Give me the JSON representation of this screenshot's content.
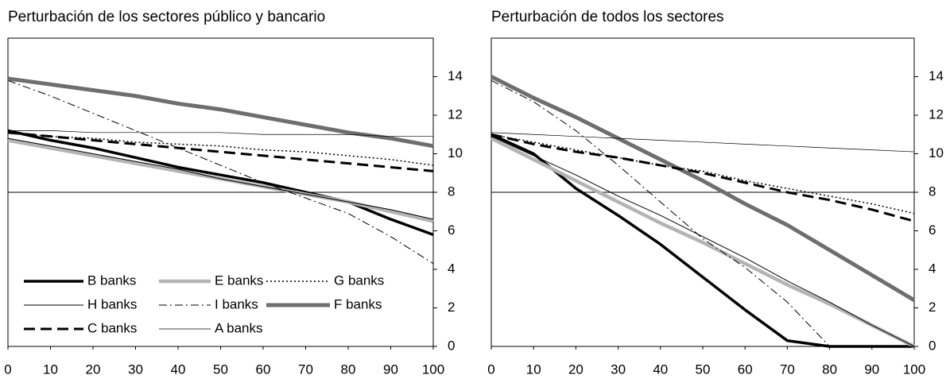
{
  "chart_data": [
    {
      "type": "line",
      "title": "Perturbación de los sectores público y bancario",
      "x": [
        0,
        10,
        20,
        30,
        40,
        50,
        60,
        70,
        80,
        90,
        100
      ],
      "xlim": [
        0,
        100
      ],
      "xticks": [
        0,
        10,
        20,
        30,
        40,
        50,
        60,
        70,
        80,
        90,
        100
      ],
      "ylim": [
        0,
        16
      ],
      "yticks": [
        0,
        2,
        4,
        6,
        8,
        10,
        12,
        14
      ],
      "hline": 8,
      "legend": true,
      "series": [
        {
          "name": "B banks",
          "color": "#000000",
          "width": 3.5,
          "dash": "none",
          "values": [
            11.2,
            10.7,
            10.3,
            9.8,
            9.3,
            8.9,
            8.5,
            8.0,
            7.5,
            6.6,
            5.8
          ]
        },
        {
          "name": "E banks",
          "color": "#b4b4b4",
          "width": 4.5,
          "dash": "none",
          "values": [
            10.7,
            10.3,
            9.9,
            9.5,
            9.1,
            8.7,
            8.3,
            7.9,
            7.5,
            7.0,
            6.5
          ]
        },
        {
          "name": "G banks",
          "color": "#000000",
          "width": 1.5,
          "dash": "2,3",
          "values": [
            11.1,
            10.9,
            10.8,
            10.6,
            10.5,
            10.4,
            10.2,
            10.1,
            9.9,
            9.7,
            9.4
          ]
        },
        {
          "name": "H banks",
          "color": "#000000",
          "width": 1,
          "dash": "none",
          "values": [
            10.8,
            10.4,
            10.0,
            9.6,
            9.2,
            8.7,
            8.3,
            7.9,
            7.5,
            7.1,
            6.6
          ]
        },
        {
          "name": "I banks",
          "color": "#000000",
          "width": 1,
          "dash": "10,4,2,4",
          "values": [
            13.8,
            13.0,
            12.1,
            11.2,
            10.3,
            9.4,
            8.5,
            7.7,
            6.9,
            5.7,
            4.3
          ]
        },
        {
          "name": "F banks",
          "color": "#6e6e6e",
          "width": 5,
          "dash": "none",
          "values": [
            13.9,
            13.6,
            13.3,
            13.0,
            12.6,
            12.3,
            11.9,
            11.5,
            11.1,
            10.8,
            10.4
          ]
        },
        {
          "name": "C banks",
          "color": "#000000",
          "width": 3,
          "dash": "14,7",
          "values": [
            11.1,
            10.9,
            10.7,
            10.5,
            10.3,
            10.1,
            9.9,
            9.7,
            9.5,
            9.3,
            9.1
          ]
        },
        {
          "name": "A banks",
          "color": "#000000",
          "width": 0.7,
          "dash": "none",
          "values": [
            11.2,
            11.2,
            11.1,
            11.1,
            11.1,
            11.1,
            11.0,
            11.0,
            11.0,
            10.9,
            10.9
          ]
        }
      ]
    },
    {
      "type": "line",
      "title": "Perturbación de todos los sectores",
      "x": [
        0,
        10,
        20,
        30,
        40,
        50,
        60,
        70,
        80,
        90,
        100
      ],
      "xlim": [
        0,
        100
      ],
      "xticks": [
        0,
        10,
        20,
        30,
        40,
        50,
        60,
        70,
        80,
        90,
        100
      ],
      "ylim": [
        0,
        16
      ],
      "yticks": [
        0,
        2,
        4,
        6,
        8,
        10,
        12,
        14
      ],
      "hline": 8,
      "legend": false,
      "series": [
        {
          "color": "#000000",
          "width": 3.5,
          "dash": "none",
          "values": [
            11.0,
            10.0,
            8.2,
            6.8,
            5.3,
            3.6,
            1.9,
            0.3,
            0,
            0,
            0
          ]
        },
        {
          "color": "#b4b4b4",
          "width": 4.5,
          "dash": "none",
          "values": [
            10.8,
            9.7,
            8.6,
            7.5,
            6.4,
            5.4,
            4.3,
            3.2,
            2.2,
            1.1,
            0
          ]
        },
        {
          "color": "#000000",
          "width": 1.5,
          "dash": "2,3",
          "values": [
            11.0,
            10.6,
            10.2,
            9.8,
            9.4,
            9.1,
            8.6,
            8.2,
            7.8,
            7.4,
            6.9
          ]
        },
        {
          "color": "#000000",
          "width": 1,
          "dash": "none",
          "values": [
            10.9,
            9.9,
            8.9,
            7.8,
            6.8,
            5.7,
            4.6,
            3.4,
            2.3,
            1.1,
            0
          ]
        },
        {
          "color": "#000000",
          "width": 1,
          "dash": "10,4,2,4",
          "values": [
            13.8,
            12.7,
            11.2,
            9.4,
            7.5,
            5.6,
            4.1,
            2.3,
            0,
            0,
            0
          ]
        },
        {
          "color": "#6e6e6e",
          "width": 5,
          "dash": "none",
          "values": [
            14.0,
            12.9,
            11.9,
            10.8,
            9.7,
            8.6,
            7.4,
            6.3,
            5.0,
            3.7,
            2.4
          ]
        },
        {
          "color": "#000000",
          "width": 3,
          "dash": "14,7",
          "values": [
            11.0,
            10.5,
            10.1,
            9.8,
            9.4,
            9.0,
            8.5,
            8.0,
            7.6,
            7.1,
            6.5
          ]
        },
        {
          "color": "#000000",
          "width": 0.7,
          "dash": "none",
          "values": [
            11.1,
            11.0,
            10.9,
            10.8,
            10.7,
            10.6,
            10.5,
            10.4,
            10.3,
            10.2,
            10.1
          ]
        }
      ]
    }
  ]
}
